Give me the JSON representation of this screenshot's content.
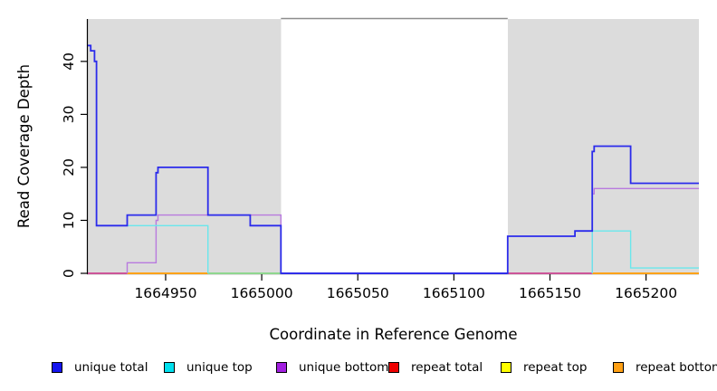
{
  "figure": {
    "background": "#ffffff",
    "plot_bg": "#ffffff",
    "shaded_region_color": "#dcdcdc",
    "axis_color": "#000000",
    "top_border_color": "#8c8c8c"
  },
  "chart_data": {
    "type": "line",
    "subtype": "step-coverage-plot",
    "title": "",
    "xlabel": "Coordinate in Reference Genome",
    "ylabel": "Read Coverage Depth",
    "xlim": [
      1664909.5,
      1665227.5
    ],
    "ylim": [
      0,
      48
    ],
    "x_ticks": [
      1664950,
      1665000,
      1665050,
      1665100,
      1665150,
      1665200
    ],
    "y_ticks": [
      0,
      10,
      20,
      30,
      40
    ],
    "grid": false,
    "legend_position": "bottom",
    "shaded_regions": [
      {
        "x1": 1664909.5,
        "x2": 1665010,
        "color": "#dcdcdc"
      },
      {
        "x1": 1665128,
        "x2": 1665227.5,
        "color": "#dcdcdc"
      }
    ],
    "top_border": {
      "x1": 1665010,
      "x2": 1665128,
      "color": "#8c8c8c"
    },
    "series": [
      {
        "name": "unique total",
        "line_color": "#2b2beb",
        "legend_color": "#1414ee",
        "line_width": 1.8,
        "segments": [
          [
            [
              1664909.5,
              43
            ],
            [
              1664911,
              43
            ],
            [
              1664911,
              42
            ],
            [
              1664913,
              42
            ],
            [
              1664913,
              40
            ],
            [
              1664914,
              40
            ],
            [
              1664914,
              9
            ],
            [
              1664930,
              9
            ],
            [
              1664930,
              11
            ],
            [
              1664945,
              11
            ],
            [
              1664945,
              19
            ],
            [
              1664946,
              19
            ],
            [
              1664946,
              20
            ],
            [
              1664972,
              20
            ],
            [
              1664972,
              11
            ],
            [
              1664994,
              11
            ],
            [
              1664994,
              9
            ],
            [
              1665010,
              9
            ],
            [
              1665010,
              0
            ],
            [
              1665128,
              0
            ],
            [
              1665128,
              7
            ],
            [
              1665163,
              7
            ],
            [
              1665163,
              8
            ],
            [
              1665172,
              8
            ],
            [
              1665172,
              23
            ],
            [
              1665173,
              23
            ],
            [
              1665173,
              24
            ],
            [
              1665192,
              24
            ],
            [
              1665192,
              17
            ],
            [
              1665227.5,
              17
            ]
          ]
        ]
      },
      {
        "name": "unique top",
        "line_color": "#69e7ec",
        "legend_color": "#00e0ee",
        "line_width": 1.4,
        "segments": [
          [
            [
              1664914,
              9
            ],
            [
              1664972,
              9
            ],
            [
              1664972,
              0
            ]
          ],
          [
            [
              1665172,
              0
            ],
            [
              1665172,
              8
            ],
            [
              1665192,
              8
            ],
            [
              1665192,
              1
            ],
            [
              1665227.5,
              1
            ]
          ]
        ]
      },
      {
        "name": "unique bottom",
        "line_color": "#b87ade",
        "legend_color": "#a21fe0",
        "line_width": 1.4,
        "segments": [
          [
            [
              1664930,
              0
            ],
            [
              1664930,
              2
            ],
            [
              1664945,
              2
            ],
            [
              1664945,
              10
            ],
            [
              1664946,
              10
            ],
            [
              1664946,
              11
            ],
            [
              1665010,
              11
            ],
            [
              1665010,
              0
            ]
          ],
          [
            [
              1665172,
              0
            ],
            [
              1665172,
              15
            ],
            [
              1665173,
              15
            ],
            [
              1665173,
              16
            ],
            [
              1665227.5,
              16
            ]
          ]
        ]
      },
      {
        "name": "repeat total",
        "line_color": "#ee0000",
        "legend_color": "#ee0000",
        "line_width": 1.8,
        "segments": [
          [
            [
              1664909.5,
              0
            ],
            [
              1665227.5,
              0
            ]
          ]
        ]
      },
      {
        "name": "repeat top",
        "line_color": "#ffff00",
        "legend_color": "#ffff00",
        "line_width": 1.8,
        "segments": [
          [
            [
              1664909.5,
              0
            ],
            [
              1665227.5,
              0
            ]
          ]
        ]
      },
      {
        "name": "repeat bottom",
        "line_color": "#ffa319",
        "legend_color": "#ffa014",
        "line_width": 2.0,
        "segments": [
          [
            [
              1664909.5,
              0
            ],
            [
              1665227.5,
              0
            ]
          ]
        ]
      }
    ],
    "baseline_overlap_segments": [
      {
        "x1": 1664909.5,
        "x2": 1664930,
        "color": "#cc5599"
      },
      {
        "x1": 1664930,
        "x2": 1664972,
        "color": "#ffa319"
      },
      {
        "x1": 1664972,
        "x2": 1665010,
        "color": "#8fd78f"
      },
      {
        "x1": 1665010,
        "x2": 1665128,
        "color": "#5544dd"
      },
      {
        "x1": 1665128,
        "x2": 1665172,
        "color": "#cc5599"
      }
    ]
  },
  "legend": {
    "items": [
      {
        "label": "unique total",
        "color": "#1414ee"
      },
      {
        "label": "unique top",
        "color": "#00e0ee"
      },
      {
        "label": "unique bottom",
        "color": "#a21fe0"
      },
      {
        "label": "repeat total",
        "color": "#ee0000"
      },
      {
        "label": "repeat top",
        "color": "#ffff00"
      },
      {
        "label": "repeat bottom",
        "color": "#ffa014"
      }
    ]
  }
}
